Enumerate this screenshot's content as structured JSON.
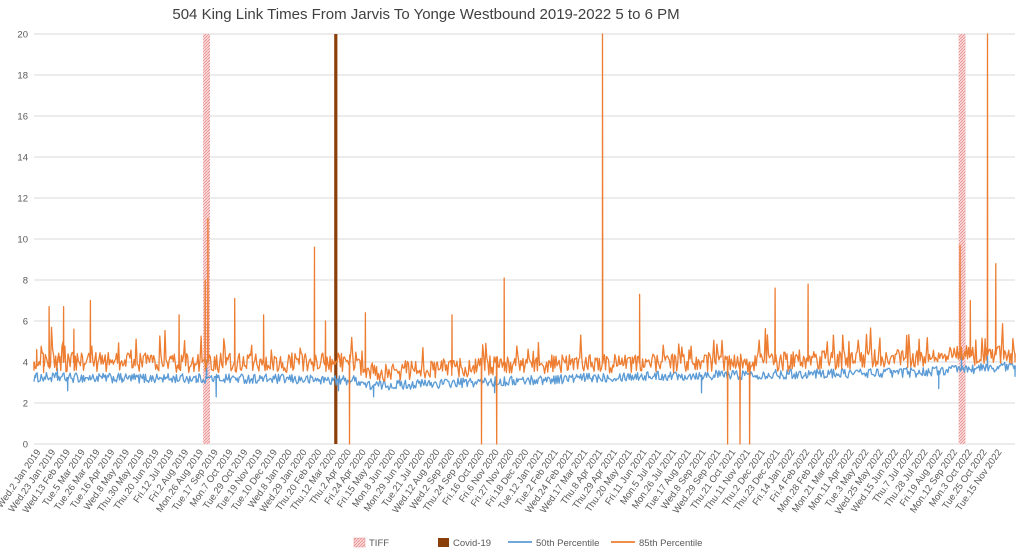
{
  "chart_data": {
    "type": "line",
    "title": "504 King Link Times From Jarvis To Yonge Westbound 2019-2022 5 to 6 PM",
    "xlabel": "",
    "ylabel": "",
    "ylim": [
      0,
      20
    ],
    "y_ticks": [
      0,
      2,
      4,
      6,
      8,
      10,
      12,
      14,
      16,
      18,
      20
    ],
    "grid": true,
    "legend_position": "bottom",
    "x_range": [
      "2019-01-02",
      "2022-11-29"
    ],
    "x_tick_labels": [
      "Wed.2 Jan 2019",
      "Wed.23 Jan 2019",
      "Wed.13 Feb 2019",
      "Tue.5 Mar 2019",
      "Tue.26 Mar 2019",
      "Tue.16 Apr 2019",
      "Wed.8 May 2019",
      "Thu.30 May 2019",
      "Thu.20 Jun 2019",
      "Fri.12 Jul 2019",
      "Fri.2 Aug 2019",
      "Mon.26 Aug 2019",
      "Tue.17 Sep 2019",
      "Mon.7 Oct 2019",
      "Tue.29 Oct 2019",
      "Tue.19 Nov 2019",
      "Tue.10 Dec 2019",
      "Wed.8 Jan 2020",
      "Wed.29 Jan 2020",
      "Thu.20 Feb 2020",
      "Thu.12 Mar 2020",
      "Thu.2 Apr 2020",
      "Fri.24 Apr 2020",
      "Fri.15 May 2020",
      "Mon.8 Jun 2020",
      "Mon.29 Jun 2020",
      "Tue.21 Jul 2020",
      "Wed.12 Aug 2020",
      "Wed.2 Sep 2020",
      "Thu.24 Sep 2020",
      "Fri.16 Oct 2020",
      "Fri.6 Nov 2020",
      "Fri.27 Nov 2020",
      "Fri.18 Dec 2020",
      "Tue.12 Jan 2021",
      "Tue.2 Feb 2021",
      "Wed.24 Feb 2021",
      "Wed.17 Mar 2021",
      "Thu.8 Apr 2021",
      "Thu.29 Apr 2021",
      "Thu.20 May 2021",
      "Fri.11 Jun 2021",
      "Mon.5 Jul 2021",
      "Mon.26 Jul 2021",
      "Tue.17 Aug 2021",
      "Wed.8 Sep 2021",
      "Wed.29 Sep 2021",
      "Thu.21 Oct 2021",
      "Thu.11 Nov 2021",
      "Thu.2 Dec 2021",
      "Thu.23 Dec 2021",
      "Fri.14 Jan 2022",
      "Fri.4 Feb 2022",
      "Mon.28 Feb 2022",
      "Mon.21 Mar 2022",
      "Mon.11 Apr 2022",
      "Tue.3 May 2022",
      "Wed.25 May 2022",
      "Wed.15 Jun 2022",
      "Thu.7 Jul 2022",
      "Thu.28 Jul 2022",
      "Fri.19 Aug 2022",
      "Mon.12 Sep 2022",
      "Mon.3 Oct 2022",
      "Tue.25 Oct 2022",
      "Tue.15 Nov 2022"
    ],
    "events": [
      {
        "name": "TIFF",
        "dates": [
          "2019-09-05",
          "2019-09-15"
        ],
        "color": "#f4b6b6"
      },
      {
        "name": "TIFF",
        "dates": [
          "2022-09-08",
          "2022-09-18"
        ],
        "color": "#f4b6b6"
      },
      {
        "name": "Covid-19",
        "dates": [
          "2020-03-16"
        ],
        "color": "#8b3f0a"
      }
    ],
    "series": [
      {
        "name": "50th Percentile",
        "color": "#5b9bd5",
        "baseline": [
          [
            0,
            3.25
          ],
          [
            0.1,
            3.2
          ],
          [
            0.2,
            3.2
          ],
          [
            0.33,
            3.1
          ],
          [
            0.34,
            2.85
          ],
          [
            0.45,
            3.0
          ],
          [
            0.6,
            3.3
          ],
          [
            0.9,
            3.5
          ],
          [
            1.0,
            3.8
          ]
        ],
        "amplitude": 0.24,
        "points": [
          {
            "x": "2019-01-04",
            "y": 3.3
          },
          {
            "x": "2019-02-05",
            "y": 3.7
          },
          {
            "x": "2019-02-20",
            "y": 2.6
          },
          {
            "x": "2019-05-10",
            "y": 3.0
          },
          {
            "x": "2019-08-26",
            "y": 3.0
          },
          {
            "x": "2019-09-10",
            "y": 4.1
          },
          {
            "x": "2019-09-24",
            "y": 2.3
          },
          {
            "x": "2020-03-20",
            "y": 2.6
          },
          {
            "x": "2020-05-10",
            "y": 2.3
          },
          {
            "x": "2020-11-02",
            "y": 2.5
          },
          {
            "x": "2021-03-25",
            "y": 3.3
          },
          {
            "x": "2021-08-30",
            "y": 2.5
          },
          {
            "x": "2022-06-01",
            "y": 3.6
          },
          {
            "x": "2022-08-10",
            "y": 2.7
          },
          {
            "x": "2022-09-12",
            "y": 4.7
          },
          {
            "x": "2022-10-20",
            "y": 4.5
          },
          {
            "x": "2022-11-29",
            "y": 3.3
          }
        ]
      },
      {
        "name": "85th Percentile",
        "color": "#ed7d31",
        "baseline": [
          [
            0,
            4.0
          ],
          [
            0.15,
            3.95
          ],
          [
            0.33,
            4.0
          ],
          [
            0.34,
            3.5
          ],
          [
            0.5,
            3.9
          ],
          [
            0.75,
            4.0
          ],
          [
            0.9,
            4.2
          ],
          [
            1.0,
            4.4
          ]
        ],
        "amplitude": 0.48,
        "points": [
          {
            "x": "2019-01-02",
            "y": 3.6
          },
          {
            "x": "2019-01-06",
            "y": 4.6
          },
          {
            "x": "2019-01-16",
            "y": 3.5
          },
          {
            "x": "2019-01-24",
            "y": 6.7
          },
          {
            "x": "2019-02-08",
            "y": 4.2
          },
          {
            "x": "2019-02-14",
            "y": 6.7
          },
          {
            "x": "2019-03-01",
            "y": 5.6
          },
          {
            "x": "2019-03-25",
            "y": 7.0
          },
          {
            "x": "2019-08-01",
            "y": 6.3
          },
          {
            "x": "2019-09-08",
            "y": 8.0
          },
          {
            "x": "2019-09-12",
            "y": 11.0
          },
          {
            "x": "2019-10-21",
            "y": 7.1
          },
          {
            "x": "2019-12-02",
            "y": 6.3
          },
          {
            "x": "2020-02-14",
            "y": 9.6
          },
          {
            "x": "2020-03-01",
            "y": 6.0
          },
          {
            "x": "2020-04-05",
            "y": 0.0
          },
          {
            "x": "2020-04-28",
            "y": 6.4
          },
          {
            "x": "2020-09-01",
            "y": 6.3
          },
          {
            "x": "2020-10-14",
            "y": 0.0
          },
          {
            "x": "2020-11-05",
            "y": 0.0
          },
          {
            "x": "2020-11-16",
            "y": 8.1
          },
          {
            "x": "2021-04-08",
            "y": 20.0
          },
          {
            "x": "2021-06-01",
            "y": 7.3
          },
          {
            "x": "2021-10-07",
            "y": 0.0
          },
          {
            "x": "2021-10-25",
            "y": 0.0
          },
          {
            "x": "2021-11-08",
            "y": 0.0
          },
          {
            "x": "2021-12-15",
            "y": 7.6
          },
          {
            "x": "2022-02-01",
            "y": 7.8
          },
          {
            "x": "2022-09-10",
            "y": 9.7
          },
          {
            "x": "2022-09-25",
            "y": 7.0
          },
          {
            "x": "2022-10-20",
            "y": 20.0
          },
          {
            "x": "2022-11-01",
            "y": 8.8
          },
          {
            "x": "2022-11-29",
            "y": 4.0
          }
        ]
      }
    ]
  },
  "legend": [
    {
      "name": "TIFF",
      "style": "pattern",
      "color": "#f4b6b6"
    },
    {
      "name": "Covid-19",
      "style": "box",
      "color": "#8b3f0a"
    },
    {
      "name": "50th Percentile",
      "style": "line",
      "color": "#5b9bd5"
    },
    {
      "name": "85th Percentile",
      "style": "line",
      "color": "#ed7d31"
    }
  ],
  "colors": {
    "grid": "#d9d9d9",
    "axis_text": "#595959",
    "title": "#404040"
  }
}
